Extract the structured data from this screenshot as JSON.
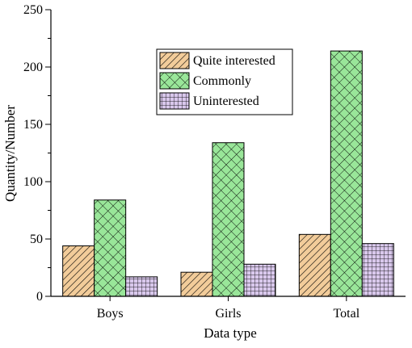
{
  "chart_data": {
    "type": "bar",
    "title": "",
    "xlabel": "Data type",
    "ylabel": "Quantity/Number",
    "categories": [
      "Boys",
      "Girls",
      "Total"
    ],
    "ylim": [
      0,
      250
    ],
    "yticks": [
      0,
      50,
      100,
      150,
      200,
      250
    ],
    "series": [
      {
        "name": "Quite interested",
        "values": [
          44,
          21,
          54
        ],
        "color": "#f2cc9a",
        "pattern": "diagonal-hatch"
      },
      {
        "name": "Commonly",
        "values": [
          84,
          134,
          214
        ],
        "color": "#99e699",
        "pattern": "cross-hatch"
      },
      {
        "name": "Uninterested",
        "values": [
          17,
          28,
          46
        ],
        "color": "#d9c8ec",
        "pattern": "grid"
      }
    ],
    "legend": {
      "position": "top-center"
    },
    "grid": false
  }
}
